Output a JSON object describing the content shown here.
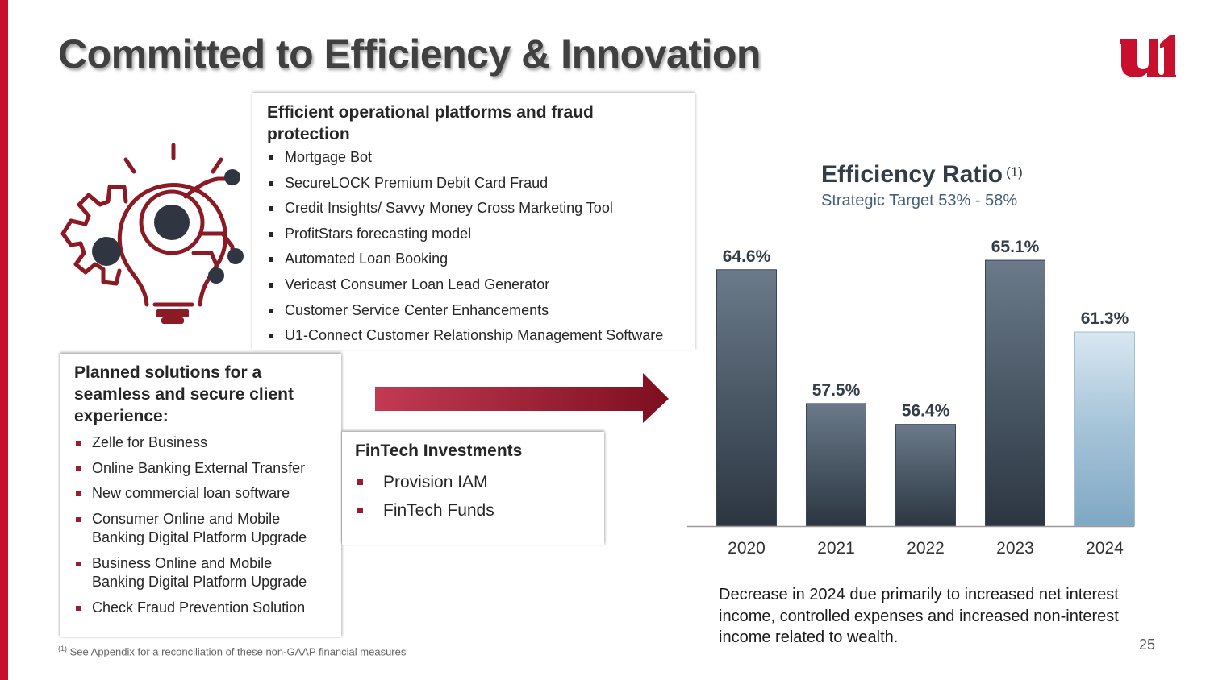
{
  "slide": {
    "title": "Committed to Efficiency & Innovation",
    "page_number": "25",
    "footnote_marker": "(1)",
    "footnote": "See Appendix for a reconciliation of these non-GAAP financial measures",
    "accent_color": "#c8102e",
    "logo_icon": "u1-logo-icon",
    "illustration_icon": "lightbulb-gears-icon",
    "arrow_icon": "right-arrow-icon"
  },
  "panels": {
    "platforms": {
      "heading": "Efficient operational platforms and fraud protection",
      "items": [
        "Mortgage Bot",
        "SecureLOCK Premium Debit Card Fraud",
        "Credit Insights/ Savvy Money Cross Marketing Tool",
        "ProfitStars forecasting model",
        "Automated Loan Booking",
        "Vericast Consumer Loan Lead Generator",
        "Customer Service Center Enhancements",
        "U1-Connect Customer Relationship Management Software"
      ]
    },
    "planned": {
      "heading": "Planned solutions for a seamless and secure client experience:",
      "items": [
        "Zelle for Business",
        "Online Banking External Transfer",
        "New commercial loan software",
        "Consumer Online and Mobile Banking Digital Platform Upgrade",
        "Business Online and Mobile Banking Digital Platform Upgrade",
        "Check Fraud Prevention Solution"
      ]
    },
    "fintech": {
      "heading": "FinTech Investments",
      "items": [
        "Provision IAM",
        "FinTech Funds"
      ]
    }
  },
  "chart_data": {
    "type": "bar",
    "title": "Efficiency Ratio",
    "title_note": "(1)",
    "subtitle": "Strategic Target 53% - 58%",
    "categories": [
      "2020",
      "2021",
      "2022",
      "2023",
      "2024"
    ],
    "values": [
      64.6,
      57.5,
      56.4,
      65.1,
      61.3
    ],
    "labels": [
      "64.6%",
      "57.5%",
      "56.4%",
      "65.1%",
      "61.3%"
    ],
    "unit": "%",
    "baseline": 51,
    "ylim": [
      51,
      66
    ],
    "grid": false,
    "legend": "none",
    "bar_color": "#3f4d5c",
    "highlight_color": "#93b7d0",
    "highlight_index": 4,
    "note": "Decrease in 2024 due primarily to increased net interest income, controlled expenses and increased non-interest income related to wealth."
  }
}
